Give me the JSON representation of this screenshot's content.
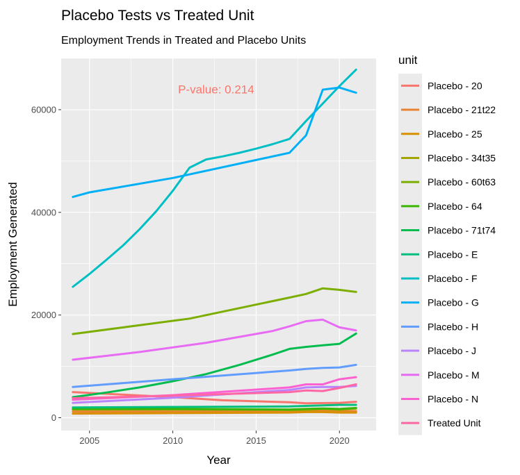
{
  "chart_data": {
    "type": "line",
    "title": "Placebo Tests vs Treated Unit",
    "subtitle": "Employment Trends in Treated and Placebo Units",
    "xlabel": "Year",
    "ylabel": "Employment Generated",
    "xlim": [
      2003.3,
      2022.2
    ],
    "ylim": [
      -2500,
      70000
    ],
    "xticks": [
      2005,
      2010,
      2015,
      2020
    ],
    "yticks": [
      0,
      20000,
      40000,
      60000
    ],
    "grid": true,
    "legend_title": "unit",
    "legend_position": "right",
    "annotation": {
      "text": "P-value: 0.214",
      "x": 2012.6,
      "y": 64000,
      "color": "#F8766D"
    },
    "series": [
      {
        "name": "Placebo - 20",
        "color": "#F8766D",
        "x": [
          2004,
          2010,
          2013,
          2017,
          2018,
          2020,
          2021
        ],
        "y": [
          5000,
          4000,
          3400,
          3000,
          2800,
          2900,
          3100
        ]
      },
      {
        "name": "Placebo - 21t22",
        "color": "#EA8331",
        "x": [
          2004,
          2010,
          2017,
          2018,
          2019,
          2020,
          2021
        ],
        "y": [
          1200,
          1200,
          1200,
          1300,
          1300,
          1200,
          1300
        ]
      },
      {
        "name": "Placebo - 25",
        "color": "#D89000",
        "x": [
          2004,
          2010,
          2017,
          2018,
          2019,
          2020,
          2021
        ],
        "y": [
          800,
          900,
          1000,
          1100,
          1100,
          1000,
          1000
        ]
      },
      {
        "name": "Placebo - 34t35",
        "color": "#A3A500",
        "x": [
          2004,
          2010,
          2017,
          2018,
          2019,
          2020,
          2021
        ],
        "y": [
          1600,
          1600,
          1500,
          1500,
          1700,
          1500,
          1800
        ]
      },
      {
        "name": "Placebo - 60t63",
        "color": "#7CAE00",
        "x": [
          2004,
          2011,
          2017,
          2018,
          2019,
          2020,
          2021
        ],
        "y": [
          16300,
          19300,
          23400,
          24100,
          25200,
          24900,
          24500
        ]
      },
      {
        "name": "Placebo - 64",
        "color": "#39B600",
        "x": [
          2004,
          2010,
          2017,
          2018,
          2019,
          2020,
          2021
        ],
        "y": [
          1700,
          1700,
          1600,
          1700,
          1800,
          1700,
          1900
        ]
      },
      {
        "name": "Placebo - 71t74",
        "color": "#00BB4E",
        "x": [
          2004,
          2006,
          2008,
          2010,
          2012,
          2014,
          2016,
          2017,
          2018,
          2019,
          2020,
          2021
        ],
        "y": [
          4000,
          4900,
          5900,
          7100,
          8500,
          10300,
          12300,
          13400,
          13800,
          14100,
          14400,
          16400
        ]
      },
      {
        "name": "Placebo - E",
        "color": "#00BF7D",
        "x": [
          2004,
          2010,
          2017,
          2018,
          2019,
          2020,
          2021
        ],
        "y": [
          2000,
          2100,
          2200,
          2300,
          2400,
          2500,
          2500
        ]
      },
      {
        "name": "Placebo - F",
        "color": "#00BFC4",
        "x": [
          2004,
          2005,
          2006,
          2007,
          2008,
          2009,
          2010,
          2011,
          2012,
          2013,
          2014,
          2015,
          2016,
          2017,
          2018,
          2019,
          2020,
          2021
        ],
        "y": [
          25500,
          28000,
          30700,
          33500,
          36700,
          40200,
          44200,
          48700,
          50300,
          50900,
          51600,
          52400,
          53300,
          54300,
          57800,
          61200,
          64600,
          67800
        ]
      },
      {
        "name": "Placebo - G",
        "color": "#00B0F6",
        "x": [
          2004,
          2005,
          2010,
          2017,
          2018,
          2019,
          2020,
          2021
        ],
        "y": [
          43000,
          43900,
          46700,
          51600,
          55000,
          63900,
          64300,
          63300
        ]
      },
      {
        "name": "Placebo - H",
        "color": "#619CFF",
        "x": [
          2004,
          2010,
          2017,
          2018,
          2019,
          2020,
          2021
        ],
        "y": [
          6000,
          7500,
          9200,
          9500,
          9700,
          9800,
          10300
        ]
      },
      {
        "name": "Placebo - J",
        "color": "#B983FF",
        "x": [
          2004,
          2010,
          2017,
          2018,
          2019,
          2020,
          2021
        ],
        "y": [
          2900,
          3900,
          5400,
          5900,
          6000,
          6000,
          6200
        ]
      },
      {
        "name": "Placebo - M",
        "color": "#E76BF3",
        "x": [
          2004,
          2008,
          2012,
          2016,
          2017,
          2018,
          2019,
          2020,
          2021
        ],
        "y": [
          11300,
          12800,
          14600,
          16900,
          17800,
          18800,
          19100,
          17600,
          17000
        ]
      },
      {
        "name": "Placebo - N",
        "color": "#FD61D1",
        "x": [
          2004,
          2010,
          2017,
          2018,
          2019,
          2020,
          2021
        ],
        "y": [
          3500,
          4400,
          5900,
          6500,
          6500,
          7500,
          7900
        ]
      },
      {
        "name": "Treated Unit",
        "color": "#FF67A4",
        "x": [
          2004,
          2010,
          2017,
          2018,
          2019,
          2020,
          2021
        ],
        "y": [
          3800,
          4300,
          5000,
          5300,
          5200,
          5800,
          6500
        ]
      }
    ]
  }
}
